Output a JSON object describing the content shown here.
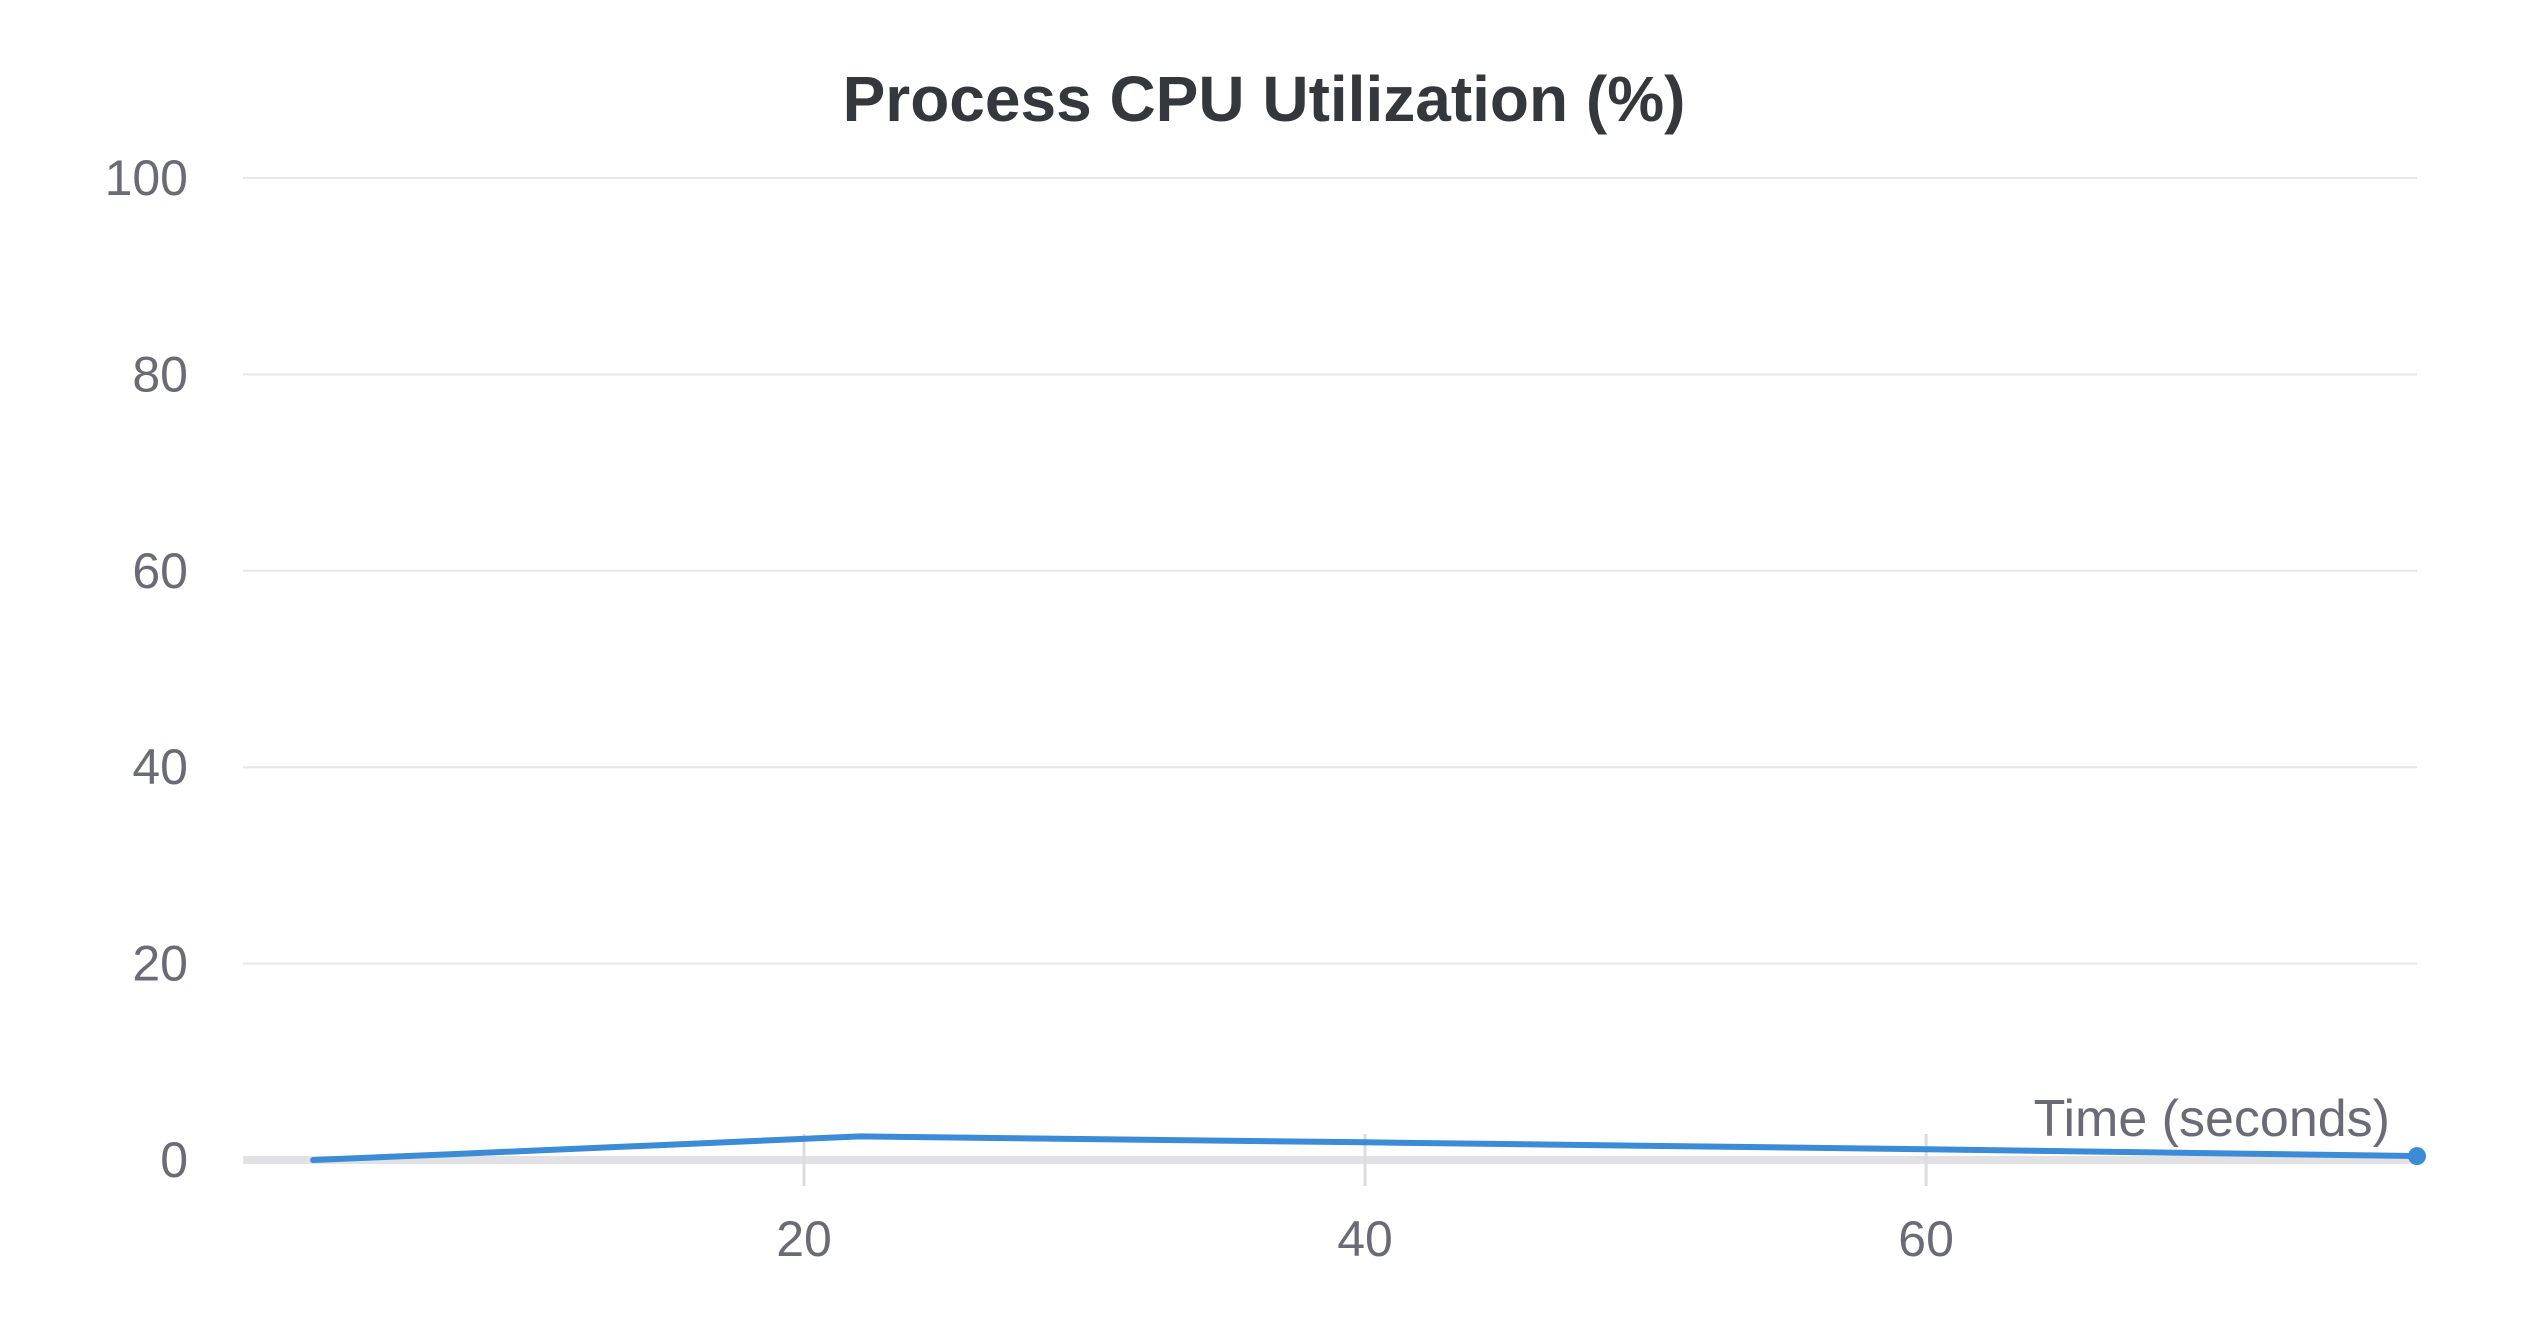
{
  "chart_data": {
    "type": "line",
    "title": "Process CPU Utilization (%)",
    "xlabel": "Time (seconds)",
    "ylabel": "",
    "xlim": [
      0,
      77.5
    ],
    "ylim": [
      0,
      100
    ],
    "x_ticks": [
      20,
      40,
      60
    ],
    "y_ticks": [
      0,
      20,
      40,
      60,
      80,
      100
    ],
    "grid": "horizontal",
    "series": [
      {
        "color": "#3b8bd6",
        "x": [
          2.5,
          7.5,
          22,
          40,
          60,
          77.5
        ],
        "y": [
          0,
          0.6,
          2.4,
          1.8,
          1.1,
          0.4
        ]
      }
    ]
  }
}
